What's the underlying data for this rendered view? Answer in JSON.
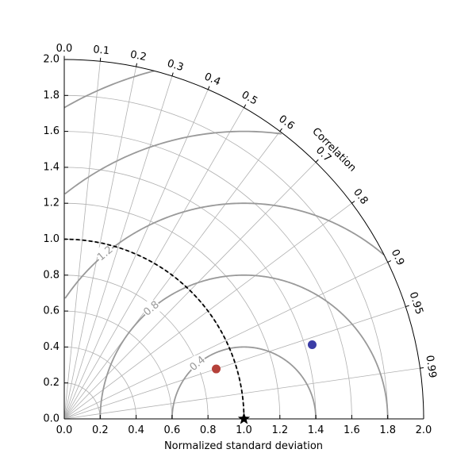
{
  "chart_data": {
    "type": "scatter",
    "subtype": "taylor-diagram",
    "xlabel": "Normalized standard deviation",
    "ylabel": "",
    "angular_label": "Correlation",
    "xlim": [
      0.0,
      2.0
    ],
    "ylim": [
      0.0,
      2.0
    ],
    "x_ticks": [
      "0.0",
      "0.2",
      "0.4",
      "0.6",
      "0.8",
      "1.0",
      "1.2",
      "1.4",
      "1.6",
      "1.8",
      "2.0"
    ],
    "y_ticks": [
      "0.0",
      "0.2",
      "0.4",
      "0.6",
      "0.8",
      "1.0",
      "1.2",
      "1.4",
      "1.6",
      "1.8",
      "2.0"
    ],
    "correlation_ticks": [
      "0.0",
      "0.1",
      "0.2",
      "0.3",
      "0.4",
      "0.5",
      "0.6",
      "0.7",
      "0.8",
      "0.9",
      "0.95",
      "0.99"
    ],
    "grid": true,
    "reference": {
      "std": 1.0,
      "correlation": 1.0,
      "marker": "star",
      "color": "#000000"
    },
    "rms_contours": [
      "0.4",
      "0.8",
      "1.2",
      "1.6",
      "2.0"
    ],
    "points": [
      {
        "std": 0.89,
        "correlation": 0.95,
        "color": "#b5413a"
      },
      {
        "std": 1.44,
        "correlation": 0.958,
        "color": "#3b3da6"
      }
    ]
  }
}
